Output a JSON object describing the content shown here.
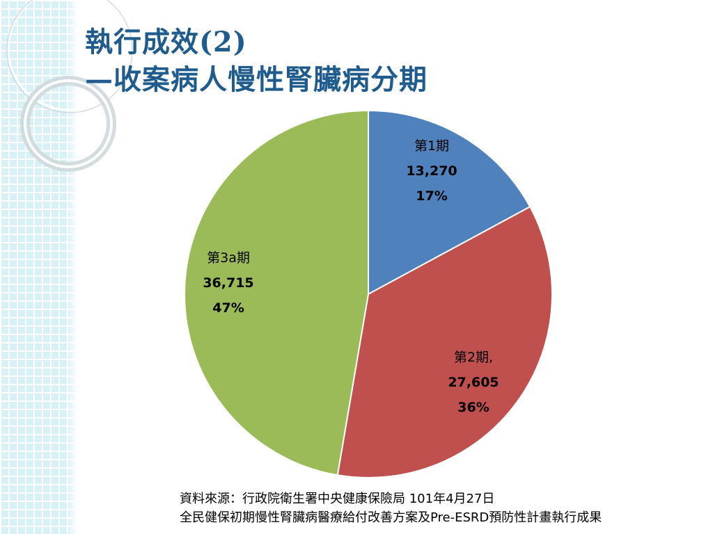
{
  "slide": {
    "title_line1": "執行成效(2)",
    "title_line2": "—收案病人慢性腎臟病分期",
    "source_line1": "資料來源：行政院衛生署中央健康保險局 101年4月27日",
    "source_line2": "全民健保初期慢性腎臟病醫療給付改善方案及Pre-ESRD預防性計畫執行成果"
  },
  "chart_data": {
    "type": "pie",
    "title": "",
    "start_angle_deg": 0,
    "direction": "clockwise",
    "slices": [
      {
        "label": "第1期",
        "value": 13270,
        "value_text": "13,270",
        "percent_text": "17%",
        "color": "#4f81bd"
      },
      {
        "label": "第2期,",
        "value": 27605,
        "value_text": "27,605",
        "percent_text": "36%",
        "color": "#c0504d"
      },
      {
        "label": "第3a期",
        "value": 36715,
        "value_text": "36,715",
        "percent_text": "47%",
        "color": "#9bbb59"
      }
    ]
  },
  "colors": {
    "title": "#1f5b8c",
    "strip": "#d7f1f6"
  }
}
